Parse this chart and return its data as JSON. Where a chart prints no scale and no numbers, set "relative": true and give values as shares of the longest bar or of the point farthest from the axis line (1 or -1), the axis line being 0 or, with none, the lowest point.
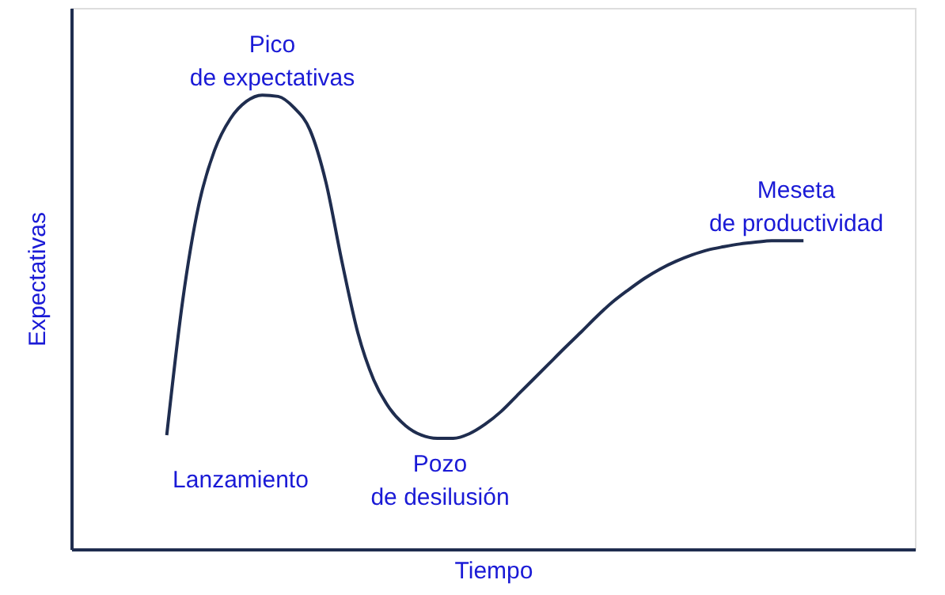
{
  "chart_data": {
    "type": "line",
    "relative": true,
    "xlabel": "Tiempo",
    "ylabel": "Expectativas",
    "categories": [
      null,
      null,
      null,
      null,
      null,
      null,
      null,
      null,
      null,
      null,
      null,
      null,
      null,
      null,
      null,
      null,
      null,
      null,
      null,
      null,
      null,
      null,
      null,
      null,
      null,
      null,
      null,
      null,
      null,
      null,
      null,
      null,
      null,
      null,
      null,
      null,
      null,
      null,
      null,
      null,
      null,
      null,
      null,
      null,
      null,
      null,
      null,
      null,
      null,
      null,
      null,
      null,
      null,
      null
    ],
    "series": [
      {
        "color": "#1f2d4f",
        "values": [
          null,
          null,
          null,
          null,
          null,
          null,
          0.251,
          0.547,
          0.756,
          0.878,
          0.948,
          0.986,
          1.0,
          0.997,
          0.972,
          0.923,
          0.808,
          0.634,
          0.477,
          0.373,
          0.31,
          0.272,
          0.251,
          0.244,
          0.244,
          0.254,
          0.275,
          0.303,
          0.338,
          0.373,
          0.408,
          0.443,
          0.477,
          0.512,
          0.544,
          0.571,
          0.596,
          0.617,
          0.634,
          0.648,
          0.659,
          0.666,
          0.672,
          0.676,
          0.679,
          0.679,
          0.679,
          null,
          null,
          null,
          null,
          null,
          null,
          null
        ]
      }
    ],
    "annotations": [
      "Lanzamiento",
      "Pico\nde expectativas",
      "Pozo\nde desilusión",
      "Meseta\nde productividad"
    ],
    "grid": false,
    "marker": "none",
    "line_style": "solid"
  }
}
